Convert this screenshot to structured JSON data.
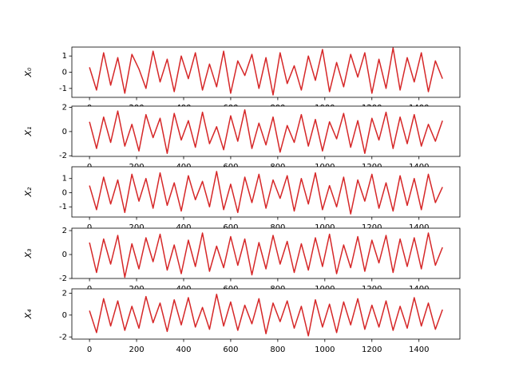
{
  "chart_data": [
    {
      "type": "line",
      "ylabel": "X₀",
      "color": "#d62728",
      "x": [
        0,
        30,
        60,
        90,
        120,
        150,
        180,
        210,
        240,
        270,
        300,
        330,
        360,
        390,
        420,
        450,
        480,
        510,
        540,
        570,
        600,
        630,
        660,
        690,
        720,
        750,
        780,
        810,
        840,
        870,
        900,
        930,
        960,
        990,
        1020,
        1050,
        1080,
        1110,
        1140,
        1170,
        1200,
        1230,
        1260,
        1290,
        1320,
        1350,
        1380,
        1410,
        1440,
        1470,
        1500
      ],
      "values": [
        0.3,
        -1.1,
        1.2,
        -0.8,
        0.9,
        -1.3,
        1.1,
        0.2,
        -1.0,
        1.3,
        -0.6,
        0.8,
        -1.2,
        1.0,
        -0.4,
        1.2,
        -1.1,
        0.5,
        -0.9,
        1.3,
        -1.3,
        0.7,
        -0.2,
        1.1,
        -1.0,
        0.9,
        -1.4,
        1.2,
        -0.7,
        0.4,
        -1.1,
        1.0,
        -0.5,
        1.4,
        -1.2,
        0.6,
        -0.9,
        1.1,
        -0.3,
        1.2,
        -1.3,
        0.8,
        -1.0,
        1.5,
        -1.1,
        0.9,
        -0.6,
        1.2,
        -1.2,
        0.7,
        -0.4
      ],
      "xlim": [
        -75,
        1574
      ],
      "xticks": [
        0,
        200,
        400,
        600,
        800,
        1000,
        1200,
        1400
      ],
      "ylim": [
        -1.55,
        1.55
      ],
      "yticks": [
        -1,
        0,
        1
      ]
    },
    {
      "type": "line",
      "ylabel": "X₁",
      "color": "#d62728",
      "x": [
        0,
        30,
        60,
        90,
        120,
        150,
        180,
        210,
        240,
        270,
        300,
        330,
        360,
        390,
        420,
        450,
        480,
        510,
        540,
        570,
        600,
        630,
        660,
        690,
        720,
        750,
        780,
        810,
        840,
        870,
        900,
        930,
        960,
        990,
        1020,
        1050,
        1080,
        1110,
        1140,
        1170,
        1200,
        1230,
        1260,
        1290,
        1320,
        1350,
        1380,
        1410,
        1440,
        1470,
        1500
      ],
      "values": [
        0.8,
        -1.4,
        1.2,
        -0.9,
        1.7,
        -1.2,
        0.6,
        -1.6,
        1.4,
        -0.5,
        1.1,
        -1.8,
        1.5,
        -0.7,
        0.9,
        -1.3,
        1.6,
        -1.0,
        0.4,
        -1.5,
        1.3,
        -0.8,
        1.8,
        -1.4,
        0.7,
        -1.1,
        1.2,
        -1.7,
        0.5,
        -0.9,
        1.4,
        -1.2,
        1.0,
        -1.6,
        0.8,
        -0.6,
        1.5,
        -1.3,
        0.9,
        -1.8,
        1.1,
        -0.7,
        1.6,
        -1.4,
        1.2,
        -1.0,
        1.4,
        -1.2,
        0.6,
        -0.8,
        0.9
      ],
      "xlim": [
        -75,
        1574
      ],
      "xticks": [
        0,
        200,
        400,
        600,
        800,
        1000,
        1200,
        1400
      ],
      "ylim": [
        -2.05,
        2.1
      ],
      "yticks": [
        -2,
        0,
        2
      ]
    },
    {
      "type": "line",
      "ylabel": "X₂",
      "color": "#d62728",
      "x": [
        0,
        30,
        60,
        90,
        120,
        150,
        180,
        210,
        240,
        270,
        300,
        330,
        360,
        390,
        420,
        450,
        480,
        510,
        540,
        570,
        600,
        630,
        660,
        690,
        720,
        750,
        780,
        810,
        840,
        870,
        900,
        930,
        960,
        990,
        1020,
        1050,
        1080,
        1110,
        1140,
        1170,
        1200,
        1230,
        1260,
        1290,
        1320,
        1350,
        1380,
        1410,
        1440,
        1470,
        1500
      ],
      "values": [
        0.5,
        -1.2,
        1.1,
        -0.8,
        0.9,
        -1.4,
        1.3,
        -0.6,
        1.0,
        -1.1,
        1.4,
        -0.9,
        0.7,
        -1.3,
        1.2,
        -0.5,
        0.8,
        -1.0,
        1.5,
        -1.2,
        0.6,
        -1.4,
        1.1,
        -0.7,
        1.3,
        -1.1,
        0.9,
        -0.4,
        1.2,
        -1.3,
        1.0,
        -0.8,
        1.4,
        -1.2,
        0.5,
        -1.0,
        1.1,
        -1.5,
        0.9,
        -0.6,
        1.3,
        -1.1,
        0.7,
        -1.3,
        1.2,
        -0.9,
        1.0,
        -1.2,
        1.3,
        -0.7,
        0.4
      ],
      "xlim": [
        -75,
        1574
      ],
      "xticks": [
        0,
        200,
        400,
        600,
        800,
        1000,
        1200,
        1400
      ],
      "ylim": [
        -1.72,
        1.83
      ],
      "yticks": [
        -1,
        0,
        1
      ]
    },
    {
      "type": "line",
      "ylabel": "X₃",
      "color": "#d62728",
      "x": [
        0,
        30,
        60,
        90,
        120,
        150,
        180,
        210,
        240,
        270,
        300,
        330,
        360,
        390,
        420,
        450,
        480,
        510,
        540,
        570,
        600,
        630,
        660,
        690,
        720,
        750,
        780,
        810,
        840,
        870,
        900,
        930,
        960,
        990,
        1020,
        1050,
        1080,
        1110,
        1140,
        1170,
        1200,
        1230,
        1260,
        1290,
        1320,
        1350,
        1380,
        1410,
        1440,
        1470,
        1500
      ],
      "values": [
        1.0,
        -1.5,
        1.3,
        -0.8,
        1.6,
        -1.9,
        0.9,
        -1.2,
        1.4,
        -0.6,
        1.7,
        -1.3,
        0.8,
        -1.6,
        1.2,
        -1.0,
        1.8,
        -1.4,
        0.7,
        -1.1,
        1.5,
        -0.9,
        1.3,
        -1.7,
        1.0,
        -1.2,
        1.6,
        -0.8,
        1.1,
        -1.5,
        0.9,
        -1.3,
        1.4,
        -1.0,
        1.7,
        -1.6,
        0.8,
        -1.1,
        1.5,
        -1.4,
        1.2,
        -0.7,
        1.6,
        -1.5,
        1.3,
        -1.0,
        1.4,
        -1.2,
        1.8,
        -0.9,
        0.6
      ],
      "xlim": [
        -75,
        1574
      ],
      "xticks": [
        0,
        200,
        400,
        600,
        800,
        1000,
        1200,
        1400
      ],
      "ylim": [
        -2.0,
        2.2
      ],
      "yticks": [
        -2,
        0,
        2
      ]
    },
    {
      "type": "line",
      "ylabel": "X₄",
      "color": "#d62728",
      "x": [
        0,
        30,
        60,
        90,
        120,
        150,
        180,
        210,
        240,
        270,
        300,
        330,
        360,
        390,
        420,
        450,
        480,
        510,
        540,
        570,
        600,
        630,
        660,
        690,
        720,
        750,
        780,
        810,
        840,
        870,
        900,
        930,
        960,
        990,
        1020,
        1050,
        1080,
        1110,
        1140,
        1170,
        1200,
        1230,
        1260,
        1290,
        1320,
        1350,
        1380,
        1410,
        1440,
        1470,
        1500
      ],
      "values": [
        0.4,
        -1.6,
        1.5,
        -1.0,
        1.3,
        -1.4,
        0.8,
        -1.2,
        1.7,
        -0.7,
        1.1,
        -1.5,
        1.4,
        -0.9,
        1.6,
        -1.1,
        0.7,
        -1.3,
        1.9,
        -1.0,
        1.2,
        -1.4,
        0.9,
        -0.8,
        1.5,
        -1.7,
        1.1,
        -0.6,
        1.3,
        -1.2,
        0.8,
        -1.9,
        1.4,
        -1.1,
        1.0,
        -1.6,
        1.2,
        -0.9,
        1.5,
        -1.3,
        0.9,
        -1.1,
        1.3,
        -1.4,
        0.8,
        -1.2,
        1.6,
        -1.0,
        1.1,
        -1.3,
        0.5
      ],
      "xlim": [
        -75,
        1574
      ],
      "xticks": [
        0,
        200,
        400,
        600,
        800,
        1000,
        1200,
        1400
      ],
      "ylim": [
        -2.2,
        2.4
      ],
      "yticks": [
        -2,
        0,
        2
      ]
    }
  ]
}
